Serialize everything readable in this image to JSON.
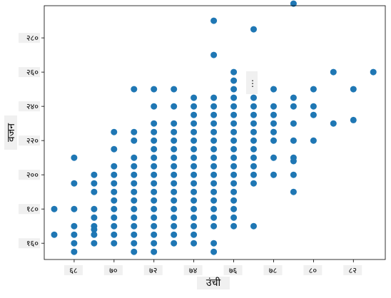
{
  "chart_data": {
    "type": "scatter",
    "xlabel": "उंची",
    "ylabel": "वजन",
    "xlim": [
      66.5,
      83.6
    ],
    "ylim": [
      150.5,
      298.8
    ],
    "x_ticks": [
      68,
      70,
      72,
      74,
      76,
      78,
      80,
      82
    ],
    "x_tick_labels": [
      "६८",
      "७०",
      "७२",
      "७४",
      "७६",
      "७८",
      "८०",
      "८२"
    ],
    "y_ticks": [
      160,
      180,
      200,
      220,
      240,
      260,
      280
    ],
    "y_tick_labels": [
      "१६०",
      "१८०",
      "२००",
      "२२०",
      "२४०",
      "२६०",
      "२८०"
    ],
    "annotation": "⋮",
    "color": "#1f77b4",
    "series": [
      {
        "points": [
          [
            67,
            180
          ],
          [
            67,
            165
          ],
          [
            68,
            210
          ],
          [
            68,
            195
          ],
          [
            68,
            180
          ],
          [
            68,
            170
          ],
          [
            68,
            165
          ],
          [
            68,
            160
          ],
          [
            68,
            155
          ],
          [
            69,
            200
          ],
          [
            69,
            195
          ],
          [
            69,
            190
          ],
          [
            69,
            180
          ],
          [
            69,
            175
          ],
          [
            69,
            170
          ],
          [
            69,
            168
          ],
          [
            69,
            165
          ],
          [
            69,
            160
          ],
          [
            70,
            225
          ],
          [
            70,
            215
          ],
          [
            70,
            205
          ],
          [
            70,
            200
          ],
          [
            70,
            195
          ],
          [
            70,
            190
          ],
          [
            70,
            185
          ],
          [
            70,
            180
          ],
          [
            70,
            175
          ],
          [
            70,
            170
          ],
          [
            70,
            165
          ],
          [
            70,
            160
          ],
          [
            71,
            250
          ],
          [
            71,
            225
          ],
          [
            71,
            220
          ],
          [
            71,
            210
          ],
          [
            71,
            205
          ],
          [
            71,
            200
          ],
          [
            71,
            195
          ],
          [
            71,
            190
          ],
          [
            71,
            185
          ],
          [
            71,
            180
          ],
          [
            71,
            175
          ],
          [
            71,
            170
          ],
          [
            71,
            165
          ],
          [
            71,
            160
          ],
          [
            71,
            155
          ],
          [
            72,
            250
          ],
          [
            72,
            240
          ],
          [
            72,
            230
          ],
          [
            72,
            225
          ],
          [
            72,
            220
          ],
          [
            72,
            215
          ],
          [
            72,
            210
          ],
          [
            72,
            205
          ],
          [
            72,
            200
          ],
          [
            72,
            195
          ],
          [
            72,
            190
          ],
          [
            72,
            185
          ],
          [
            72,
            180
          ],
          [
            72,
            175
          ],
          [
            72,
            170
          ],
          [
            72,
            165
          ],
          [
            72,
            160
          ],
          [
            72,
            155
          ],
          [
            73,
            250
          ],
          [
            73,
            240
          ],
          [
            73,
            230
          ],
          [
            73,
            225
          ],
          [
            73,
            220
          ],
          [
            73,
            215
          ],
          [
            73,
            210
          ],
          [
            73,
            205
          ],
          [
            73,
            200
          ],
          [
            73,
            195
          ],
          [
            73,
            190
          ],
          [
            73,
            185
          ],
          [
            73,
            180
          ],
          [
            73,
            175
          ],
          [
            73,
            170
          ],
          [
            73,
            165
          ],
          [
            73,
            160
          ],
          [
            74,
            245
          ],
          [
            74,
            240
          ],
          [
            74,
            235
          ],
          [
            74,
            230
          ],
          [
            74,
            225
          ],
          [
            74,
            220
          ],
          [
            74,
            215
          ],
          [
            74,
            210
          ],
          [
            74,
            205
          ],
          [
            74,
            200
          ],
          [
            74,
            195
          ],
          [
            74,
            190
          ],
          [
            74,
            185
          ],
          [
            74,
            180
          ],
          [
            74,
            175
          ],
          [
            74,
            170
          ],
          [
            74,
            165
          ],
          [
            74,
            160
          ],
          [
            75,
            290
          ],
          [
            75,
            270
          ],
          [
            75,
            245
          ],
          [
            75,
            240
          ],
          [
            75,
            235
          ],
          [
            75,
            230
          ],
          [
            75,
            225
          ],
          [
            75,
            220
          ],
          [
            75,
            215
          ],
          [
            75,
            210
          ],
          [
            75,
            205
          ],
          [
            75,
            200
          ],
          [
            75,
            195
          ],
          [
            75,
            190
          ],
          [
            75,
            185
          ],
          [
            75,
            180
          ],
          [
            75,
            175
          ],
          [
            75,
            170
          ],
          [
            75,
            160
          ],
          [
            75,
            155
          ],
          [
            76,
            260
          ],
          [
            76,
            255
          ],
          [
            76,
            250
          ],
          [
            76,
            245
          ],
          [
            76,
            240
          ],
          [
            76,
            235
          ],
          [
            76,
            230
          ],
          [
            76,
            225
          ],
          [
            76,
            220
          ],
          [
            76,
            215
          ],
          [
            76,
            210
          ],
          [
            76,
            205
          ],
          [
            76,
            200
          ],
          [
            76,
            195
          ],
          [
            76,
            190
          ],
          [
            76,
            185
          ],
          [
            76,
            180
          ],
          [
            76,
            175
          ],
          [
            76,
            170
          ],
          [
            77,
            285
          ],
          [
            77,
            250
          ],
          [
            77,
            245
          ],
          [
            77,
            240
          ],
          [
            77,
            235
          ],
          [
            77,
            230
          ],
          [
            77,
            225
          ],
          [
            77,
            220
          ],
          [
            77,
            215
          ],
          [
            77,
            210
          ],
          [
            77,
            205
          ],
          [
            77,
            200
          ],
          [
            77,
            195
          ],
          [
            77,
            170
          ],
          [
            78,
            250
          ],
          [
            78,
            240
          ],
          [
            78,
            235
          ],
          [
            78,
            230
          ],
          [
            78,
            225
          ],
          [
            78,
            220
          ],
          [
            78,
            210
          ],
          [
            78,
            200
          ],
          [
            79,
            300
          ],
          [
            79,
            245
          ],
          [
            79,
            240
          ],
          [
            79,
            230
          ],
          [
            79,
            220
          ],
          [
            79,
            210
          ],
          [
            79,
            208
          ],
          [
            79,
            200
          ],
          [
            79,
            190
          ],
          [
            80,
            250
          ],
          [
            80,
            240
          ],
          [
            80,
            235
          ],
          [
            80,
            220
          ],
          [
            81,
            260
          ],
          [
            81,
            230
          ],
          [
            82,
            250
          ],
          [
            82,
            232
          ],
          [
            83,
            260
          ]
        ]
      }
    ]
  }
}
